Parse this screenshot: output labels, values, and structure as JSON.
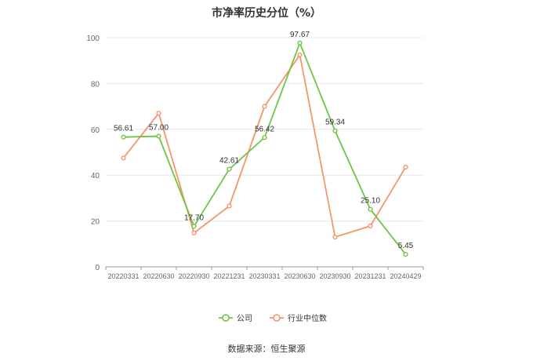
{
  "chart_data": {
    "type": "line",
    "title": "市净率历史分位（%）",
    "categories": [
      "20220331",
      "20220630",
      "20220930",
      "20221231",
      "20230331",
      "20230630",
      "20230930",
      "20231231",
      "20240429"
    ],
    "ylim": [
      0,
      100
    ],
    "yticks": [
      0,
      20,
      40,
      60,
      80,
      100
    ],
    "grid": true,
    "legend_position": "bottom",
    "series": [
      {
        "name": "公司",
        "color": "#6cc644",
        "show_labels": true,
        "values": [
          56.61,
          57.0,
          17.7,
          42.61,
          56.42,
          97.67,
          59.34,
          25.1,
          5.45
        ],
        "labels": [
          "56.61",
          "57.00",
          "17.70",
          "42.61",
          "56.42",
          "97.67",
          "59.34",
          "25.10",
          "5.45"
        ]
      },
      {
        "name": "行业中位数",
        "color": "#f4956a",
        "show_labels": false,
        "values": [
          47.5,
          67.0,
          14.8,
          26.5,
          70.0,
          92.5,
          13.0,
          17.8,
          43.5
        ]
      }
    ]
  },
  "source": "数据来源：恒生聚源"
}
